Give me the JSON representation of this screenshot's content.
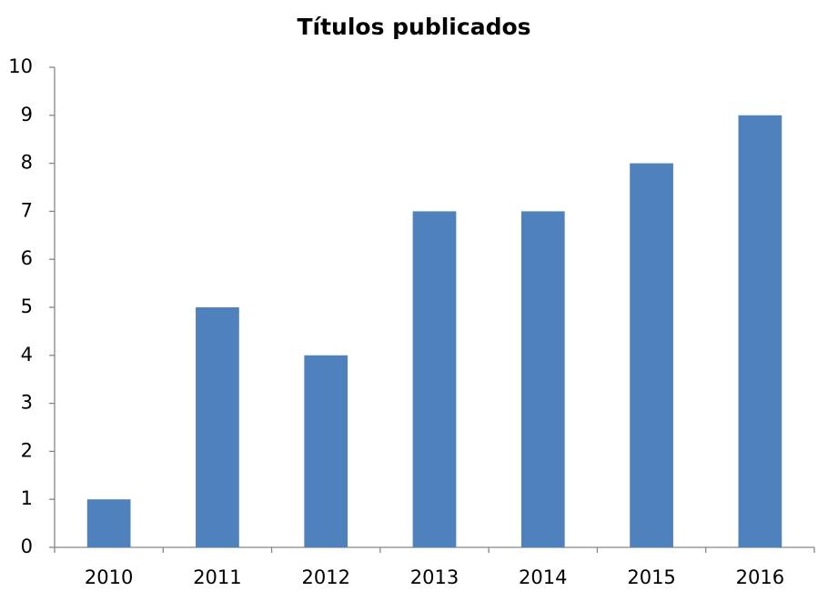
{
  "chart_data": {
    "type": "bar",
    "title": "Títulos publicados",
    "categories": [
      "2010",
      "2011",
      "2012",
      "2013",
      "2014",
      "2015",
      "2016"
    ],
    "values": [
      1,
      5,
      4,
      7,
      7,
      8,
      9
    ],
    "color": "#4f81bd",
    "ylim": [
      0,
      10
    ],
    "yticks": [
      0,
      1,
      2,
      3,
      4,
      5,
      6,
      7,
      8,
      9,
      10
    ],
    "grid": false
  }
}
